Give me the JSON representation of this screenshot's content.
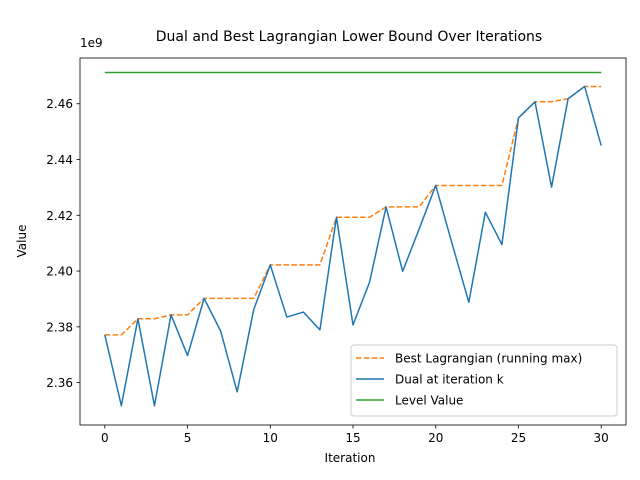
{
  "chart_data": {
    "type": "line",
    "title": "Dual and Best Lagrangian Lower Bound Over Iterations",
    "xlabel": "Iteration",
    "ylabel": "Value",
    "y_offset_text": "1e9",
    "xlim": [
      -1.5,
      31.5
    ],
    "ylim": [
      2.3448,
      2.4764
    ],
    "x_ticks": [
      0,
      5,
      10,
      15,
      20,
      25,
      30
    ],
    "y_ticks": [
      2.36,
      2.38,
      2.4,
      2.42,
      2.44,
      2.46
    ],
    "y_tick_labels": [
      "2.36",
      "2.38",
      "2.40",
      "2.42",
      "2.44",
      "2.46"
    ],
    "legend_position": "lower-right",
    "x": [
      0,
      1,
      2,
      3,
      4,
      5,
      6,
      7,
      8,
      9,
      10,
      11,
      12,
      13,
      14,
      15,
      16,
      17,
      18,
      19,
      20,
      21,
      22,
      23,
      24,
      25,
      26,
      27,
      28,
      29,
      30
    ],
    "series": [
      {
        "name": "Best Lagrangian (running max)",
        "color": "#ff7f0e",
        "style": "dashed",
        "values": [
          2.3771,
          2.3771,
          2.3829,
          2.3829,
          2.3843,
          2.3843,
          2.3902,
          2.3902,
          2.3902,
          2.3902,
          2.4022,
          2.4022,
          2.4022,
          2.4022,
          2.4193,
          2.4193,
          2.4193,
          2.423,
          2.423,
          2.423,
          2.4307,
          2.4307,
          2.4307,
          2.4307,
          2.4307,
          2.4549,
          2.4607,
          2.4607,
          2.4618,
          2.4662,
          2.4662
        ]
      },
      {
        "name": "Dual at iteration k",
        "color": "#1f77b4",
        "style": "solid",
        "values": [
          2.3771,
          2.3517,
          2.3829,
          2.3517,
          2.3843,
          2.3697,
          2.3902,
          2.3785,
          2.3567,
          2.3862,
          2.4022,
          2.3835,
          2.3853,
          2.3789,
          2.4193,
          2.3807,
          2.396,
          2.423,
          2.3999,
          2.4151,
          2.4307,
          2.4096,
          2.3888,
          2.4211,
          2.4095,
          2.4549,
          2.4607,
          2.4301,
          2.4618,
          2.4662,
          2.445
        ]
      },
      {
        "name": "Level Value",
        "color": "#2ca02c",
        "style": "solid",
        "values": [
          2.4712,
          2.4712,
          2.4712,
          2.4712,
          2.4712,
          2.4712,
          2.4712,
          2.4712,
          2.4712,
          2.4712,
          2.4712,
          2.4712,
          2.4712,
          2.4712,
          2.4712,
          2.4712,
          2.4712,
          2.4712,
          2.4712,
          2.4712,
          2.4712,
          2.4712,
          2.4712,
          2.4712,
          2.4712,
          2.4712,
          2.4712,
          2.4712,
          2.4712,
          2.4712,
          2.4712
        ]
      }
    ]
  }
}
